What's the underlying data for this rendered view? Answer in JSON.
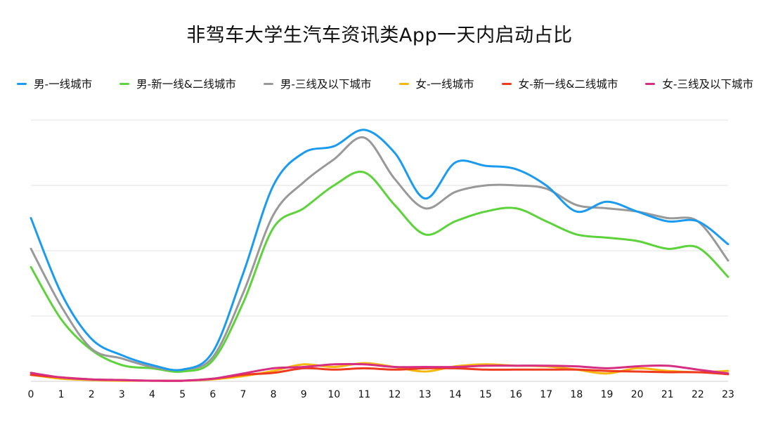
{
  "title": "非驾车大学生汽车资讯类App一天内启动占比",
  "chart_data": {
    "type": "line",
    "title": "非驾车大学生汽车资讯类App一天内启动占比",
    "xlabel": "",
    "ylabel": "",
    "x": [
      0,
      1,
      2,
      3,
      4,
      5,
      6,
      7,
      8,
      9,
      10,
      11,
      12,
      13,
      14,
      15,
      16,
      17,
      18,
      19,
      20,
      21,
      22,
      23
    ],
    "ylim": [
      0,
      40
    ],
    "grid": true,
    "legend_position": "top",
    "series": [
      {
        "name": "男-一线城市",
        "color": "#1A9BF0",
        "values": [
          25,
          13.5,
          6.5,
          4,
          2.5,
          1.8,
          4.5,
          16.5,
          30,
          35,
          36,
          38.5,
          35,
          28,
          33.5,
          33,
          32.5,
          30,
          26,
          27.5,
          26,
          24.5,
          24.5,
          21
        ]
      },
      {
        "name": "男-新一线&二线城市",
        "color": "#5CD33A",
        "values": [
          17.5,
          9.5,
          4.8,
          2.5,
          2,
          1.5,
          3.2,
          12,
          23.5,
          26.5,
          30,
          32,
          27,
          22.5,
          24.5,
          26,
          26.5,
          24.5,
          22.5,
          22,
          21.5,
          20.3,
          20.5,
          16
        ]
      },
      {
        "name": "男-三线及以下城市",
        "color": "#999999",
        "values": [
          20.3,
          11.5,
          5,
          3.5,
          2.2,
          1.8,
          3.7,
          13.5,
          25.5,
          30.5,
          34,
          37.3,
          31,
          26.5,
          29,
          30,
          30,
          29.5,
          27,
          26.5,
          26,
          25,
          24.5,
          18.5
        ]
      },
      {
        "name": "女-一线城市",
        "color": "#F5B70F",
        "values": [
          1,
          0.4,
          0.2,
          0.1,
          0.1,
          0.1,
          0.3,
          0.8,
          1.6,
          2.6,
          2.2,
          2.8,
          2.2,
          1.5,
          2.3,
          2.6,
          2.4,
          2.3,
          1.8,
          1.2,
          2,
          1.6,
          1.4,
          1.6
        ]
      },
      {
        "name": "女-新一线&二线城市",
        "color": "#EE3A1D",
        "values": [
          1,
          0.6,
          0.3,
          0.2,
          0.1,
          0.1,
          0.4,
          1,
          1.3,
          2,
          1.8,
          2,
          1.8,
          2,
          2,
          1.8,
          1.8,
          1.8,
          1.8,
          1.6,
          1.5,
          1.4,
          1.4,
          1.1
        ]
      },
      {
        "name": "女-三线及以下城市",
        "color": "#D52E82",
        "values": [
          1.3,
          0.6,
          0.3,
          0.2,
          0.1,
          0.1,
          0.4,
          1.2,
          2,
          2.2,
          2.6,
          2.6,
          2.2,
          2.2,
          2.2,
          2.4,
          2.4,
          2.4,
          2.3,
          2,
          2.3,
          2.4,
          1.8,
          1.2
        ]
      }
    ]
  }
}
